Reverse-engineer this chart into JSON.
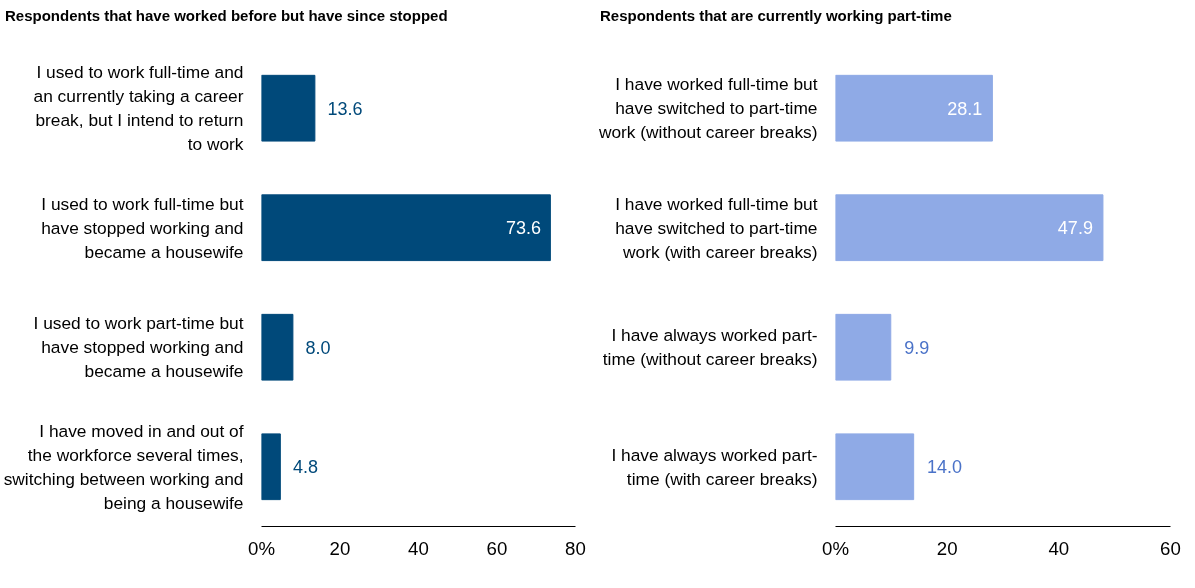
{
  "chart_data": [
    {
      "type": "bar",
      "orientation": "horizontal",
      "title": "Respondents that have worked before but have since stopped",
      "categories": [
        "I used to work full-time and an currently taking a career break, but I intend to return to work",
        "I used to work full-time but have stopped working and became a housewife",
        "I used to work part-time but have stopped working and became a housewife",
        "I have moved in and out of the workforce several times, switching between working and being a housewife"
      ],
      "values": [
        13.6,
        73.6,
        8.0,
        4.8
      ],
      "value_labels": [
        "13.6",
        "73.6",
        "8.0",
        "4.8"
      ],
      "color": "#00497a",
      "xlim": [
        0,
        80
      ],
      "xticks": [
        {
          "value": 0,
          "label": "0%"
        },
        20,
        40,
        60,
        80
      ],
      "grid": false
    },
    {
      "type": "bar",
      "orientation": "horizontal",
      "title": "Respondents that are currently working part-time",
      "categories": [
        "I have worked full-time but have switched to part-time work (without career breaks)",
        "I have worked full-time but have switched to part-time work (with career breaks)",
        "I have always worked part-time (without career breaks)",
        "I have always worked part-time (with career breaks)"
      ],
      "values": [
        28.1,
        47.9,
        9.9,
        14.0
      ],
      "value_labels": [
        "28.1",
        "47.9",
        "9.9",
        "14.0"
      ],
      "color": "#8faae6",
      "xlim": [
        0,
        60
      ],
      "xticks": [
        {
          "value": 0,
          "label": "0%"
        },
        20,
        40,
        60
      ],
      "grid": false
    }
  ]
}
